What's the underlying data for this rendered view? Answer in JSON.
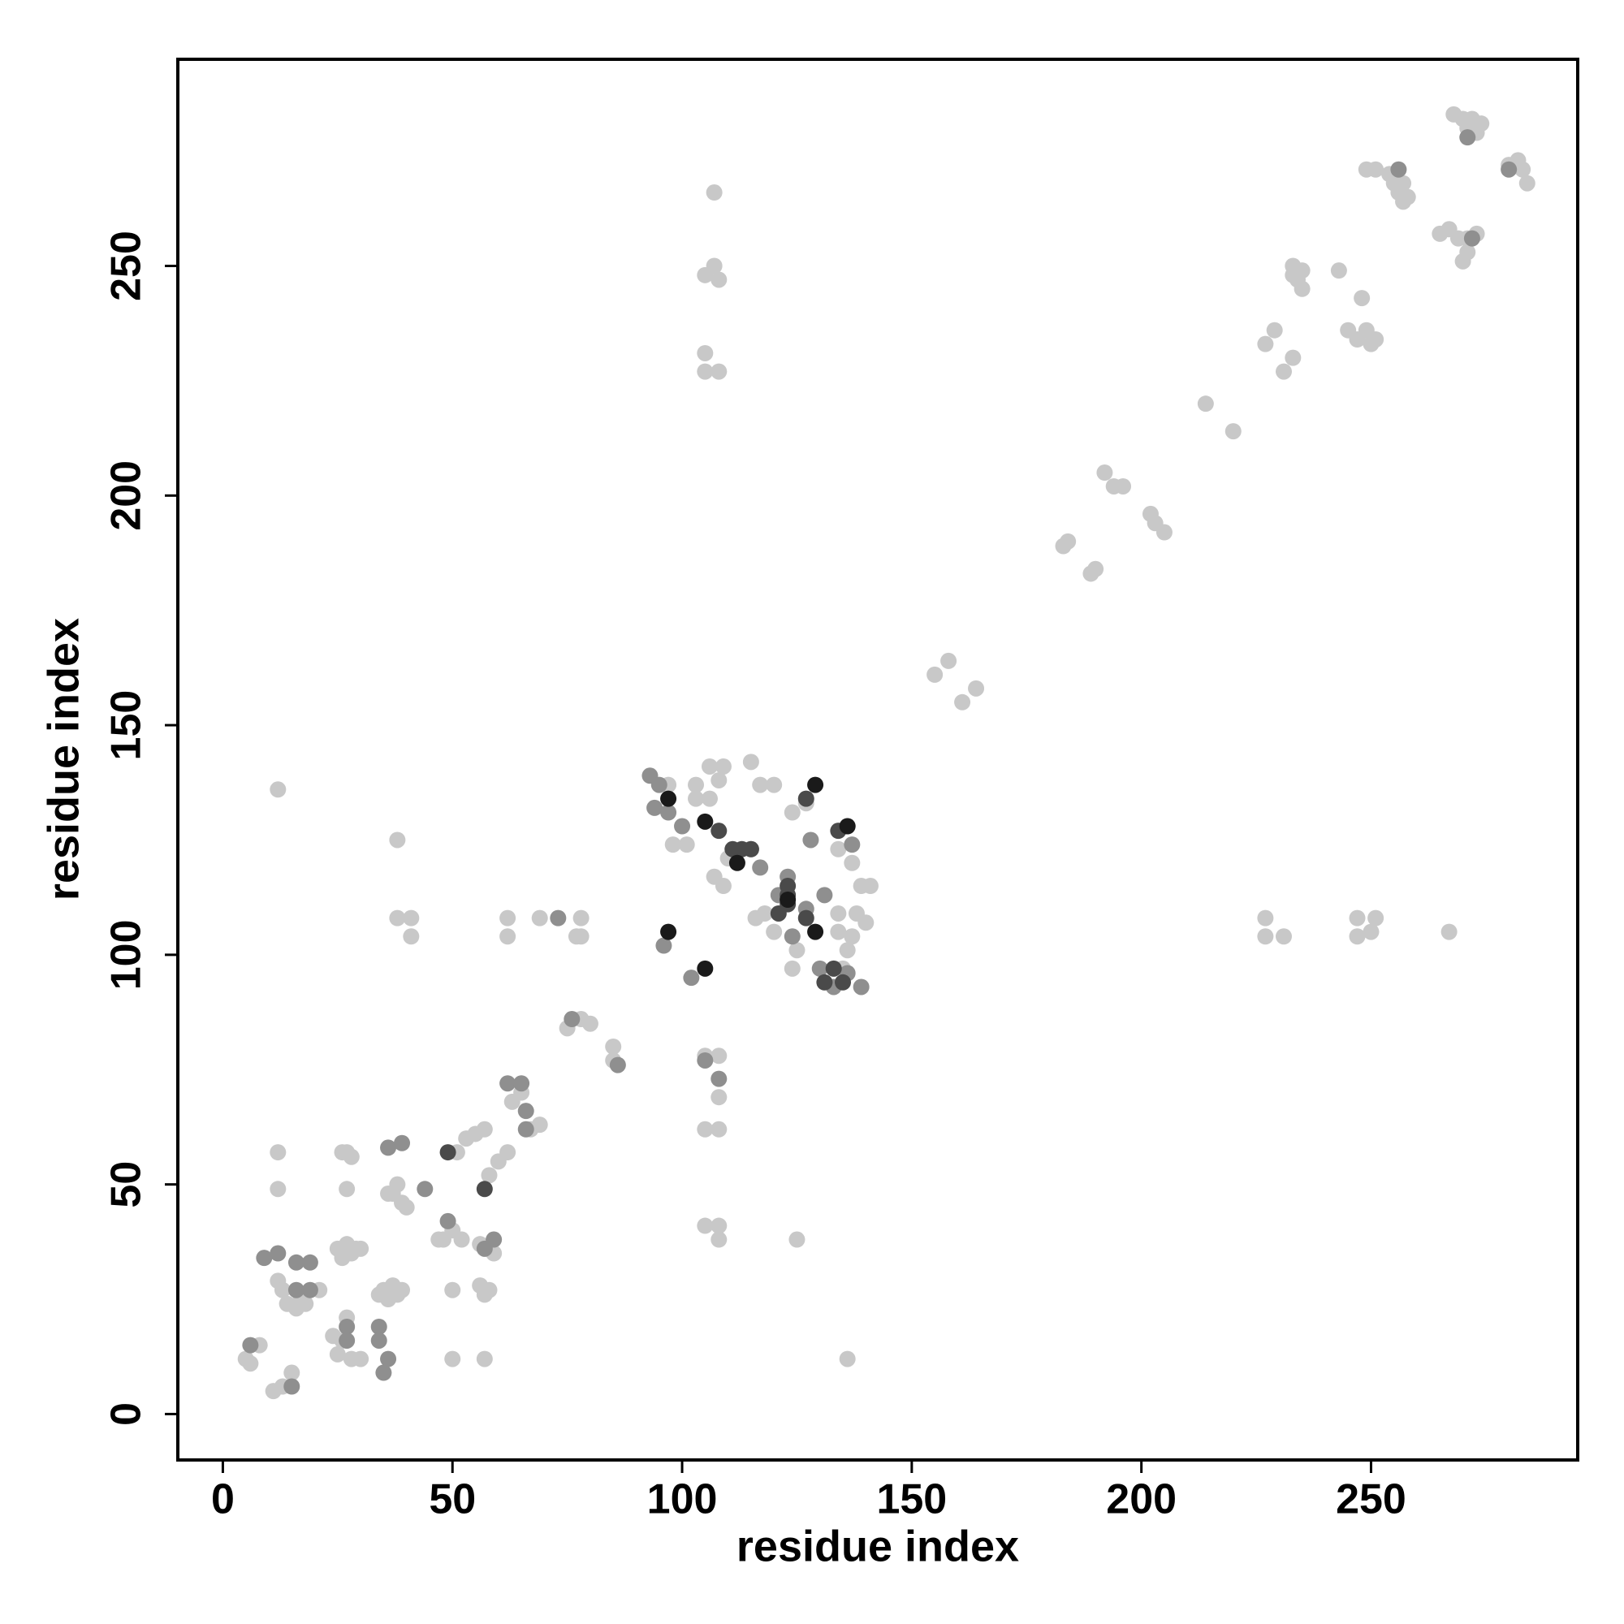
{
  "chart_data": {
    "type": "scatter",
    "x_label": "residue index",
    "y_label": "residue index",
    "xlim": [
      -9.8,
      295
    ],
    "ylim": [
      -10,
      295
    ],
    "xticks": [
      0,
      50,
      100,
      150,
      200,
      250
    ],
    "yticks": [
      0,
      50,
      100,
      150,
      200,
      250
    ],
    "grid": false,
    "series": [
      {
        "color": "#c8c8c8",
        "x": [
          268,
          270,
          272,
          274,
          273,
          271,
          280,
          282,
          283,
          284,
          281,
          249,
          251,
          254,
          255,
          256,
          257,
          258,
          257,
          265,
          267,
          269,
          271,
          273,
          271,
          270,
          233,
          235,
          234,
          235,
          233,
          243,
          248,
          245,
          247,
          249,
          251,
          250,
          227,
          229,
          231,
          233,
          107,
          105,
          107,
          108,
          105,
          105,
          108,
          214,
          220,
          192,
          194,
          196,
          202,
          203,
          205,
          183,
          184,
          189,
          190,
          155,
          158,
          161,
          164,
          12,
          38,
          38,
          41,
          41,
          62,
          62,
          69,
          77,
          78,
          78,
          227,
          227,
          231,
          247,
          247,
          250,
          251,
          267,
          97,
          103,
          106,
          109,
          115,
          117,
          120,
          124,
          127,
          134,
          137,
          139,
          141,
          138,
          140,
          137,
          136,
          135,
          124,
          116,
          118,
          120,
          125,
          98,
          101,
          107,
          109,
          110,
          103,
          106,
          108,
          134,
          134,
          78,
          80,
          85,
          85,
          75,
          63,
          65,
          67,
          69,
          58,
          60,
          62,
          55,
          57,
          53,
          51,
          48,
          50,
          52,
          47,
          50,
          50,
          26,
          27,
          28,
          27,
          36,
          38,
          39,
          37,
          40,
          25,
          27,
          28,
          29,
          26,
          30,
          35,
          37,
          38,
          36,
          39,
          34,
          12,
          12,
          12,
          13,
          14,
          16,
          18,
          21,
          17,
          5,
          6,
          8,
          11,
          13,
          15,
          24,
          26,
          25,
          28,
          30,
          27,
          56,
          57,
          58,
          56,
          59,
          105,
          108,
          105,
          108,
          108,
          105,
          108,
          108,
          125,
          136,
          57
        ],
        "y": [
          283,
          282,
          282,
          281,
          279,
          280,
          272,
          273,
          271,
          268,
          272,
          271,
          271,
          270,
          268,
          266,
          264,
          265,
          268,
          257,
          258,
          256,
          256,
          257,
          253,
          251,
          250,
          249,
          247,
          245,
          248,
          249,
          243,
          236,
          234,
          236,
          234,
          233,
          233,
          236,
          227,
          230,
          266,
          248,
          250,
          247,
          231,
          227,
          227,
          220,
          214,
          205,
          202,
          202,
          196,
          194,
          192,
          189,
          190,
          183,
          184,
          161,
          164,
          155,
          158,
          136,
          125,
          108,
          108,
          104,
          108,
          104,
          108,
          104,
          108,
          104,
          108,
          104,
          104,
          108,
          104,
          105,
          108,
          105,
          137,
          137,
          141,
          141,
          142,
          137,
          137,
          131,
          133,
          123,
          120,
          115,
          115,
          109,
          107,
          104,
          101,
          97,
          97,
          108,
          109,
          105,
          101,
          124,
          124,
          117,
          115,
          121,
          134,
          134,
          138,
          109,
          105,
          86,
          85,
          80,
          77,
          84,
          68,
          70,
          62,
          63,
          52,
          55,
          57,
          61,
          62,
          60,
          57,
          38,
          40,
          38,
          38,
          27,
          12,
          57,
          57,
          56,
          49,
          48,
          50,
          46,
          48,
          45,
          36,
          37,
          35,
          36,
          34,
          36,
          27,
          28,
          26,
          25,
          27,
          26,
          57,
          49,
          29,
          27,
          24,
          23,
          24,
          27,
          25,
          12,
          11,
          15,
          5,
          6,
          9,
          17,
          16,
          13,
          12,
          12,
          21,
          28,
          26,
          27,
          37,
          35,
          78,
          78,
          62,
          62,
          69,
          41,
          41,
          38,
          38,
          12,
          12
        ]
      },
      {
        "color": "#8f8f8f",
        "x": [
          6,
          9,
          12,
          16,
          19,
          16,
          19,
          15,
          27,
          27,
          34,
          34,
          35,
          36,
          36,
          39,
          44,
          49,
          57,
          59,
          62,
          65,
          66,
          66,
          73,
          76,
          86,
          108,
          105,
          102,
          96,
          93,
          95,
          94,
          97,
          100,
          115,
          117,
          123,
          127,
          121,
          124,
          130,
          133,
          136,
          139,
          137,
          136,
          128,
          131,
          256,
          272,
          271,
          280
        ],
        "y": [
          15,
          34,
          35,
          33,
          33,
          27,
          27,
          6,
          19,
          16,
          19,
          16,
          9,
          12,
          58,
          59,
          49,
          42,
          36,
          38,
          72,
          72,
          66,
          62,
          108,
          86,
          76,
          73,
          77,
          95,
          102,
          139,
          137,
          132,
          131,
          128,
          123,
          119,
          117,
          110,
          113,
          104,
          97,
          93,
          96,
          93,
          124,
          128,
          125,
          113,
          271,
          256,
          278,
          271
        ]
      },
      {
        "color": "#4a4a4a",
        "x": [
          49,
          57,
          108,
          111,
          113,
          115,
          123,
          123,
          123,
          127,
          127,
          134,
          121,
          133,
          131,
          135
        ],
        "y": [
          57,
          49,
          127,
          123,
          123,
          123,
          115,
          113,
          111,
          108,
          134,
          127,
          109,
          97,
          94,
          94
        ]
      },
      {
        "color": "#1a1a1a",
        "x": [
          97,
          105,
          97,
          105,
          129,
          129,
          123,
          112,
          136
        ],
        "y": [
          105,
          97,
          134,
          129,
          137,
          105,
          112,
          120,
          128
        ]
      }
    ]
  }
}
